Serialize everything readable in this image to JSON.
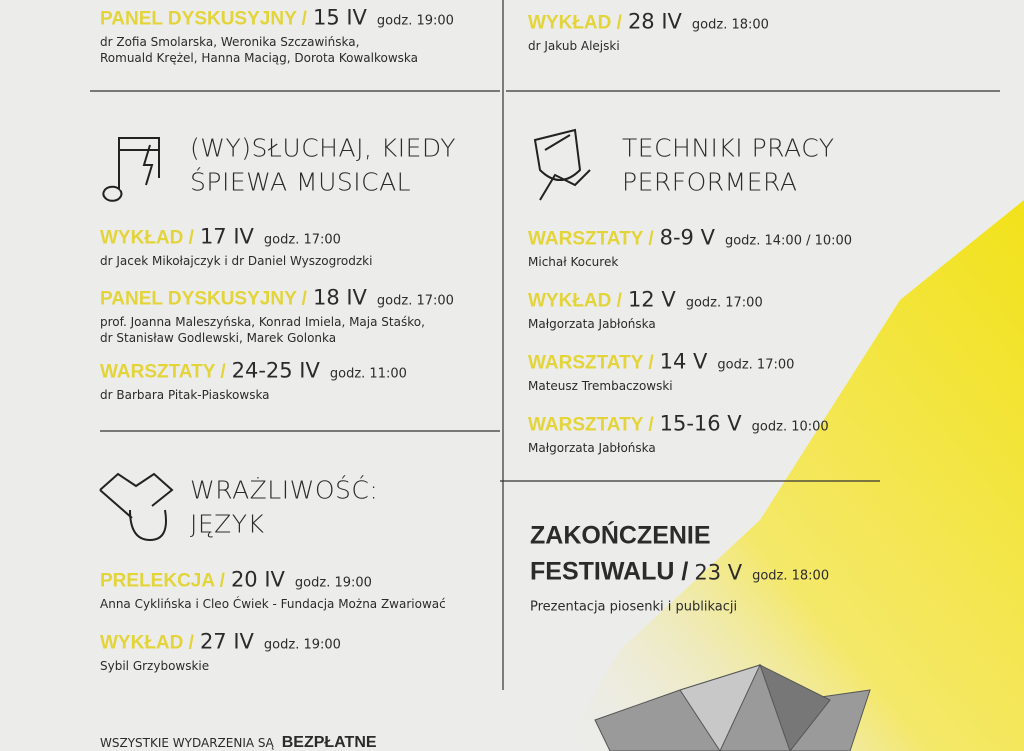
{
  "left": {
    "top_event": {
      "type": "PANEL DYSKUSYJNY /",
      "date": "15 IV",
      "time": "godz. 19:00",
      "people": [
        "dr Zofia Smolarska, Weronika Szczawińska,",
        "Romuald Krężel, Hanna Maciąg, Dorota Kowalkowska"
      ]
    },
    "sections": [
      {
        "title": [
          "(WY)SŁUCHAJ, KIEDY",
          "ŚPIEWA MUSICAL"
        ],
        "events": [
          {
            "type": "WYKŁAD /",
            "date": "17 IV",
            "time": "godz. 17:00",
            "people": [
              "dr Jacek Mikołajczyk i dr Daniel Wyszogrodzki"
            ]
          },
          {
            "type": "PANEL DYSKUSYJNY /",
            "date": "18 IV",
            "time": "godz. 17:00",
            "people": [
              "prof. Joanna Maleszyńska, Konrad Imiela, Maja Staśko,",
              "dr Stanisław Godlewski, Marek Golonka"
            ]
          },
          {
            "type": "WARSZTATY /",
            "date": "24-25 IV",
            "time": "godz. 11:00",
            "people": [
              "dr Barbara Pitak-Piaskowska"
            ]
          }
        ]
      },
      {
        "title": [
          "WRAŻLIWOŚĆ:",
          "JĘZYK"
        ],
        "events": [
          {
            "type": "PRELEKCJA /",
            "date": "20 IV",
            "time": "godz. 19:00",
            "people": [
              "Anna Cyklińska i Cleo Ćwiek - Fundacja Można Zwariować"
            ]
          },
          {
            "type": "WYKŁAD /",
            "date": "27 IV",
            "time": "godz. 19:00",
            "people": [
              "Sybil Grzybowskie"
            ]
          }
        ]
      }
    ]
  },
  "right": {
    "top_event": {
      "type": "WYKŁAD /",
      "date": "28 IV",
      "time": "godz. 18:00",
      "people": [
        "dr Jakub Alejski"
      ]
    },
    "sections": [
      {
        "title": [
          "TECHNIKI PRACY",
          "PERFORMERA"
        ],
        "events": [
          {
            "type": "WARSZTATY /",
            "date": "8-9 V",
            "time": "godz. 14:00 / 10:00",
            "people": [
              "Michał Kocurek"
            ]
          },
          {
            "type": "WYKŁAD /",
            "date": "12 V",
            "time": "godz. 17:00",
            "people": [
              "Małgorzata Jabłońska"
            ]
          },
          {
            "type": "WARSZTATY /",
            "date": "14 V",
            "time": "godz. 17:00",
            "people": [
              "Mateusz Trembaczowski"
            ]
          },
          {
            "type": "WARSZTATY /",
            "date": "15-16 V",
            "time": "godz. 10:00",
            "people": [
              "Małgorzata Jabłońska"
            ]
          }
        ]
      }
    ]
  },
  "closing": {
    "title": "ZAKOŃCZENIE",
    "line2": "FESTIWALU /",
    "date": "23 V",
    "time": "godz. 18:00",
    "description": "Prezentacja piosenki i publikacji"
  },
  "footer": {
    "text": "WSZYSTKIE WYDARZENIA SĄ",
    "emphasis": "BEZPŁATNE"
  }
}
